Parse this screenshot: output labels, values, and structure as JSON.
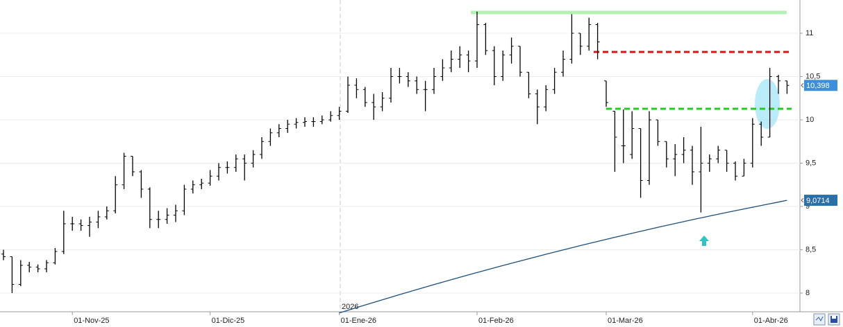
{
  "chart_data": {
    "type": "ohlc",
    "categories": [
      null,
      null,
      null,
      null,
      null,
      null,
      null,
      null,
      "01-Nov-25",
      null,
      null,
      null,
      null,
      null,
      null,
      null,
      null,
      null,
      null,
      null,
      null,
      null,
      null,
      null,
      "01-Dic-25",
      null,
      null,
      null,
      null,
      null,
      null,
      null,
      null,
      null,
      null,
      null,
      null,
      null,
      null,
      "01-Ene-26",
      null,
      null,
      null,
      null,
      null,
      null,
      null,
      null,
      null,
      null,
      null,
      null,
      null,
      null,
      null,
      "01-Feb-26",
      null,
      null,
      null,
      null,
      null,
      null,
      null,
      null,
      null,
      null,
      null,
      null,
      null,
      null,
      "01-Mar-26",
      null,
      null,
      null,
      null,
      null,
      null,
      null,
      null,
      null,
      null,
      null,
      null,
      null,
      null,
      null,
      null,
      "01-Abr-26",
      null,
      null,
      null,
      null
    ],
    "open": [
      8.45,
      8.42,
      8.1,
      8.32,
      8.3,
      8.28,
      8.35,
      8.48,
      8.8,
      8.8,
      8.78,
      8.82,
      8.88,
      8.95,
      9.25,
      9.58,
      9.4,
      9.2,
      8.85,
      8.85,
      8.9,
      8.95,
      9.2,
      9.25,
      9.27,
      9.35,
      9.45,
      9.45,
      9.55,
      9.5,
      9.6,
      9.75,
      9.85,
      9.9,
      9.95,
      9.97,
      9.98,
      9.98,
      10.0,
      10.05,
      10.1,
      10.4,
      10.35,
      10.2,
      10.15,
      10.25,
      10.5,
      10.5,
      10.45,
      10.35,
      10.35,
      10.5,
      10.6,
      10.7,
      10.75,
      10.68,
      11.1,
      10.8,
      10.5,
      10.75,
      10.85,
      10.55,
      10.3,
      10.15,
      10.35,
      10.55,
      10.7,
      11.0,
      10.85,
      11.1,
      10.45,
      10.1,
      9.7,
      9.6,
      9.9,
      9.3,
      10.0,
      9.75,
      9.55,
      9.6,
      9.65,
      9.4,
      9.5,
      9.55,
      9.65,
      9.5,
      9.35,
      9.5,
      9.95,
      9.8,
      10.5,
      10.45
    ],
    "high": [
      8.5,
      8.42,
      8.38,
      8.36,
      8.33,
      8.38,
      8.52,
      8.95,
      8.88,
      8.85,
      8.88,
      8.95,
      9.0,
      9.35,
      9.62,
      9.58,
      9.42,
      9.22,
      8.95,
      8.98,
      9.02,
      9.25,
      9.3,
      9.32,
      9.42,
      9.5,
      9.52,
      9.6,
      9.6,
      9.65,
      9.8,
      9.9,
      9.95,
      10.0,
      10.02,
      10.03,
      10.03,
      10.05,
      10.1,
      10.15,
      10.5,
      10.48,
      10.38,
      10.3,
      10.32,
      10.6,
      10.6,
      10.55,
      10.5,
      10.45,
      10.6,
      10.7,
      10.8,
      10.85,
      10.8,
      11.25,
      11.12,
      10.85,
      10.8,
      10.95,
      10.85,
      10.55,
      10.35,
      10.4,
      10.6,
      10.8,
      11.22,
      11.0,
      11.18,
      11.12,
      10.45,
      10.1,
      10.12,
      10.1,
      9.9,
      10.1,
      10.0,
      9.75,
      9.72,
      9.8,
      9.7,
      9.92,
      9.6,
      9.7,
      9.65,
      9.52,
      9.55,
      10.02,
      9.98,
      10.6,
      10.52,
      10.45
    ],
    "low": [
      8.38,
      8.0,
      8.08,
      8.24,
      8.24,
      8.24,
      8.33,
      8.45,
      8.72,
      8.72,
      8.65,
      8.75,
      8.85,
      8.92,
      9.2,
      9.35,
      9.1,
      8.75,
      8.75,
      8.8,
      8.82,
      8.9,
      9.15,
      9.2,
      9.24,
      9.3,
      9.38,
      9.4,
      9.3,
      9.45,
      9.55,
      9.7,
      9.8,
      9.85,
      9.9,
      9.92,
      9.92,
      9.95,
      9.98,
      10.0,
      10.08,
      10.25,
      10.15,
      10.0,
      10.1,
      10.2,
      10.42,
      10.38,
      10.3,
      10.1,
      10.3,
      10.45,
      10.55,
      10.6,
      10.55,
      10.6,
      10.75,
      10.4,
      10.45,
      10.65,
      10.5,
      10.25,
      9.95,
      10.1,
      10.3,
      10.5,
      10.65,
      10.75,
      10.8,
      10.7,
      10.15,
      9.4,
      9.5,
      9.55,
      9.1,
      9.25,
      9.7,
      9.45,
      9.35,
      9.5,
      9.25,
      8.93,
      9.4,
      9.5,
      9.4,
      9.3,
      9.35,
      9.45,
      9.7,
      9.8,
      10.3,
      10.3
    ],
    "close": [
      8.42,
      8.1,
      8.32,
      8.3,
      8.28,
      8.35,
      8.48,
      8.8,
      8.8,
      8.78,
      8.82,
      8.88,
      8.95,
      9.25,
      9.58,
      9.4,
      9.2,
      8.85,
      8.85,
      8.9,
      8.95,
      9.2,
      9.25,
      9.27,
      9.35,
      9.45,
      9.45,
      9.55,
      9.5,
      9.6,
      9.75,
      9.85,
      9.9,
      9.95,
      9.97,
      9.98,
      9.98,
      10.0,
      10.05,
      10.1,
      10.4,
      10.35,
      10.2,
      10.15,
      10.25,
      10.5,
      10.5,
      10.45,
      10.35,
      10.35,
      10.5,
      10.6,
      10.7,
      10.75,
      10.68,
      11.1,
      10.8,
      10.5,
      10.75,
      10.85,
      10.55,
      10.3,
      10.15,
      10.35,
      10.55,
      10.7,
      11.0,
      10.85,
      11.1,
      10.9,
      10.2,
      9.8,
      9.7,
      9.9,
      9.3,
      10.0,
      9.75,
      9.55,
      9.6,
      9.65,
      9.4,
      9.5,
      9.55,
      9.65,
      9.5,
      9.35,
      9.5,
      9.95,
      9.8,
      10.5,
      10.45,
      10.398
    ],
    "color": "#000000",
    "ma": {
      "color": "#1a4f7a",
      "values": [
        null,
        null,
        null,
        null,
        null,
        null,
        null,
        null,
        null,
        null,
        null,
        null,
        null,
        null,
        null,
        null,
        null,
        null,
        null,
        null,
        null,
        null,
        null,
        null,
        null,
        null,
        null,
        null,
        null,
        null,
        null,
        null,
        null,
        null,
        null,
        null,
        null,
        null,
        null,
        7.77,
        7.801,
        7.832,
        7.862,
        7.892,
        7.922,
        7.952,
        7.982,
        8.011,
        8.04,
        8.069,
        8.098,
        8.126,
        8.154,
        8.182,
        8.21,
        8.237,
        8.264,
        8.291,
        8.318,
        8.344,
        8.37,
        8.396,
        8.422,
        8.448,
        8.473,
        8.498,
        8.523,
        8.548,
        8.572,
        8.596,
        8.62,
        8.644,
        8.667,
        8.69,
        8.713,
        8.736,
        8.759,
        8.781,
        8.803,
        8.825,
        8.847,
        8.868,
        8.889,
        8.91,
        8.931,
        8.951,
        8.971,
        8.991,
        9.011,
        9.031,
        9.05,
        9.0714
      ]
    },
    "last_labels": {
      "values": [
        10.398,
        9.0714
      ],
      "value_labels": [
        "10,398",
        "9,0714"
      ],
      "colors": [
        "#3d8fdc",
        "#2a6fa8"
      ]
    },
    "levels": [
      {
        "value": 11.24,
        "color": "#b6f0b6",
        "style": "solid"
      },
      {
        "value": 10.784,
        "color": "#e01010",
        "style": "dashed"
      },
      {
        "value": 10.128,
        "color": "#22cc22",
        "style": "dashed"
      }
    ],
    "year_annotation": "2026",
    "ylim": [
      7.784,
      11.384
    ],
    "yticks": [
      8,
      {
        "value": 8.5,
        "label": "8,5"
      },
      9,
      {
        "value": 9.5,
        "label": "9,5"
      },
      10,
      {
        "value": 10.5,
        "label": "10,5"
      },
      11
    ],
    "grid": true
  }
}
